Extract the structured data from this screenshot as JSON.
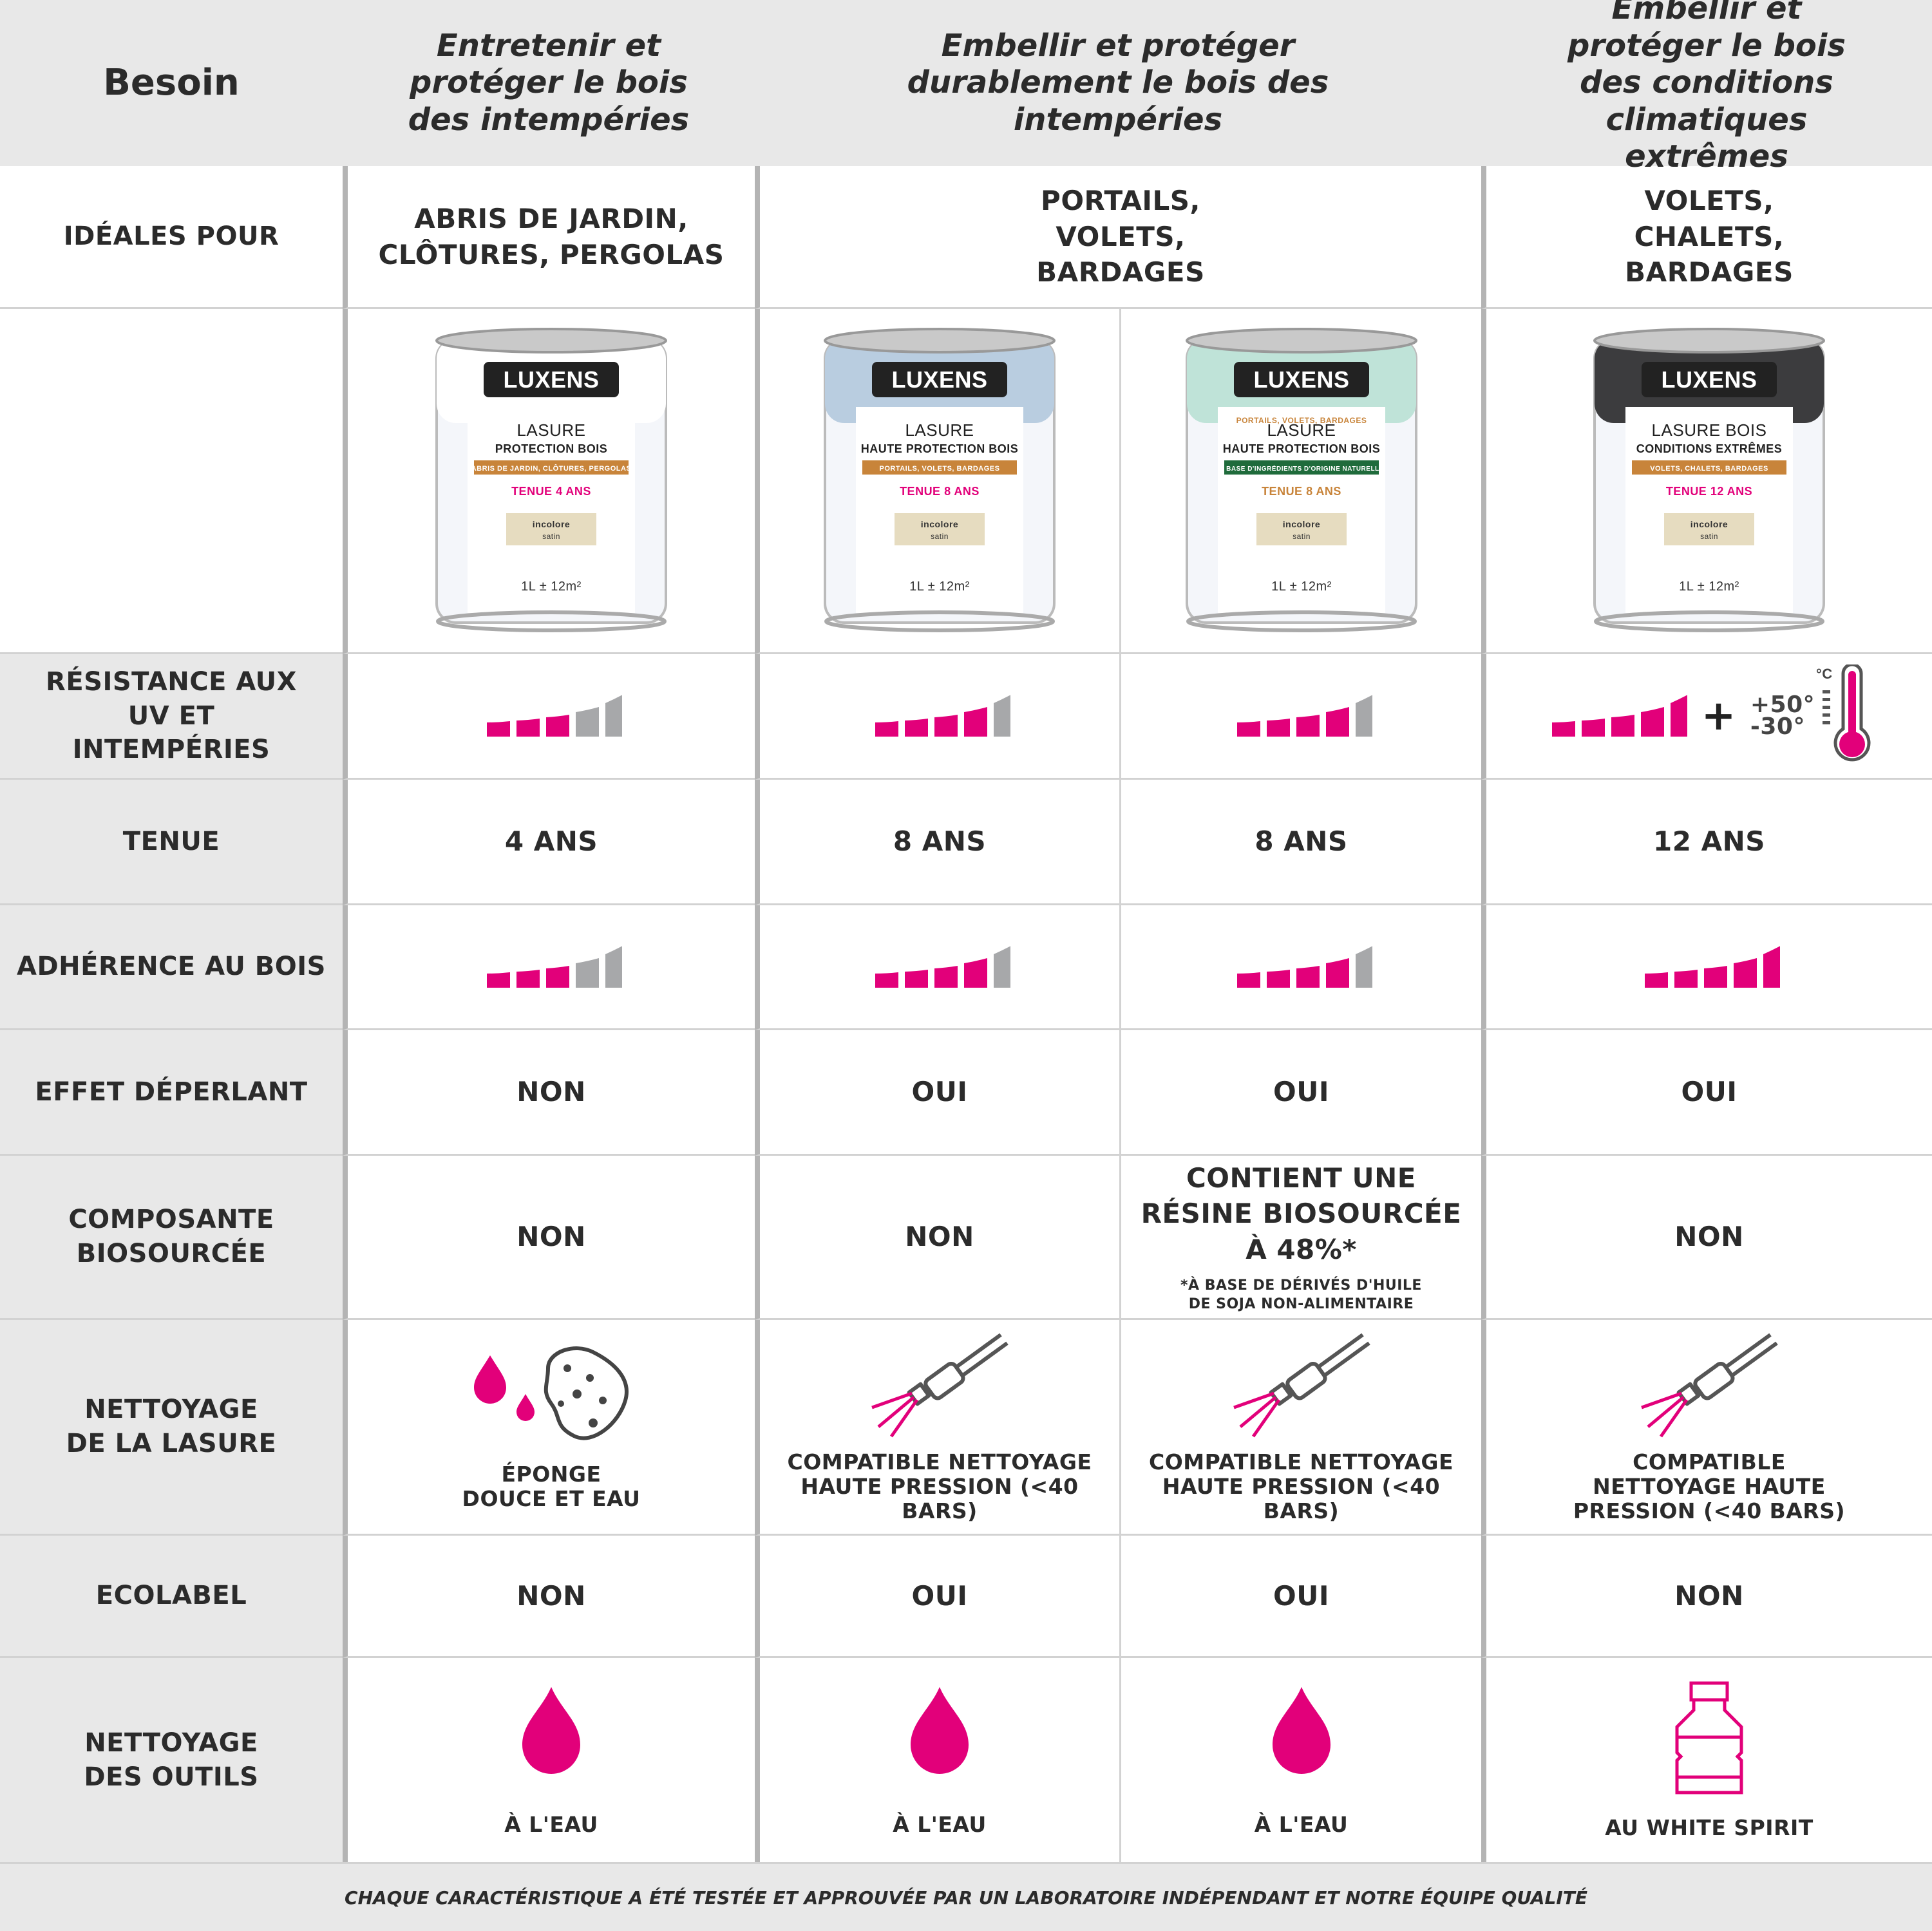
{
  "colors": {
    "accent": "#e2007a",
    "inactive_bar": "#a7a8aa",
    "header_bg": "#e8e8e8"
  },
  "header": {
    "label": "Besoin",
    "col1": "Entretenir et protéger le bois des intempéries",
    "col23": "Embellir et protéger durablement le bois des intempéries",
    "col4": "Embellir et protéger le bois des conditions climatiques extrêmes"
  },
  "ideal": {
    "label": "IDÉALES POUR",
    "col1": "ABRIS DE JARDIN, CLÔTURES, PERGOLAS",
    "col23": "PORTAILS, VOLETS, BARDAGES",
    "col4": "VOLETS, CHALETS, BARDAGES"
  },
  "products": [
    {
      "brand": "LUXENS",
      "line1": "LASURE",
      "line2": "PROTECTION BOIS",
      "band": "ABRIS DE JARDIN, CLÔTURES, PERGOLAS",
      "tenue": "TENUE 4 ANS",
      "swatch1": "incolore",
      "swatch2": "satin",
      "volume": "1L ± 12m²",
      "lid_color": "#ffffff"
    },
    {
      "brand": "LUXENS",
      "line1": "LASURE",
      "line2": "HAUTE PROTECTION BOIS",
      "band": "PORTAILS, VOLETS, BARDAGES",
      "tenue": "TENUE 8 ANS",
      "swatch1": "incolore",
      "swatch2": "satin",
      "volume": "1L ± 12m²",
      "lid_color": "#b9cde0"
    },
    {
      "brand": "LUXENS",
      "top": "PORTAILS, VOLETS, BARDAGES",
      "line1": "LASURE",
      "line2": "HAUTE PROTECTION BOIS",
      "band": "À BASE D'INGRÉDIENTS D'ORIGINE NATURELLE",
      "tenue": "TENUE 8 ANS",
      "swatch1": "incolore",
      "swatch2": "satin",
      "volume": "1L ± 12m²",
      "lid_color": "#bfe3d8"
    },
    {
      "brand": "LUXENS",
      "line1": "LASURE BOIS",
      "line2": "CONDITIONS EXTRÊMES",
      "band": "VOLETS, CHALETS, BARDAGES",
      "tenue": "TENUE 12 ANS",
      "swatch1": "incolore",
      "swatch2": "satin",
      "volume": "1L ± 12m²",
      "lid_color": "#3c3c3e"
    }
  ],
  "uv": {
    "label": "RÉSISTANCE AUX UV ET INTEMPÉRIES",
    "levels": [
      3,
      4,
      4,
      5
    ],
    "max": 5,
    "plus": "+",
    "temp_high": "+50°",
    "temp_low": "-30°",
    "unit": "°C"
  },
  "tenue": {
    "label": "TENUE",
    "values": [
      "4 ANS",
      "8 ANS",
      "8 ANS",
      "12 ANS"
    ]
  },
  "adherence": {
    "label": "ADHÉRENCE AU BOIS",
    "levels": [
      3,
      4,
      4,
      5
    ],
    "max": 5
  },
  "deperlant": {
    "label": "EFFET DÉPERLANT",
    "values": [
      "NON",
      "OUI",
      "OUI",
      "OUI"
    ]
  },
  "bio": {
    "label": "COMPOSANTE BIOSOURCÉE",
    "values": [
      "NON",
      "NON",
      "CONTIENT UNE RÉSINE BIOSOURCÉE À 48%*",
      "NON"
    ],
    "note": "*À BASE DE DÉRIVÉS D'HUILE DE SOJA NON-ALIMENTAIRE"
  },
  "nettoyage": {
    "label": "NETTOYAGE DE LA LASURE",
    "values": [
      "ÉPONGE DOUCE ET EAU",
      "COMPATIBLE NETTOYAGE HAUTE PRESSION (<40 BARS)",
      "COMPATIBLE NETTOYAGE HAUTE PRESSION (<40 BARS)",
      "COMPATIBLE NETTOYAGE HAUTE PRESSION (<40 BARS)"
    ],
    "icons": [
      "sponge-drops-icon",
      "pressure-washer-icon",
      "pressure-washer-icon",
      "pressure-washer-icon"
    ]
  },
  "ecolabel": {
    "label": "ECOLABEL",
    "values": [
      "NON",
      "OUI",
      "OUI",
      "NON"
    ]
  },
  "outils": {
    "label": "NETTOYAGE DES OUTILS",
    "values": [
      "À L'EAU",
      "À L'EAU",
      "À L'EAU",
      "AU WHITE SPIRIT"
    ],
    "icons": [
      "water-drop-icon",
      "water-drop-icon",
      "water-drop-icon",
      "white-spirit-bottle-icon"
    ]
  },
  "footer": "CHAQUE CARACTÉRISTIQUE A ÉTÉ TESTÉE ET APPROUVÉE PAR UN LABORATOIRE INDÉPENDANT ET NOTRE ÉQUIPE QUALITÉ"
}
